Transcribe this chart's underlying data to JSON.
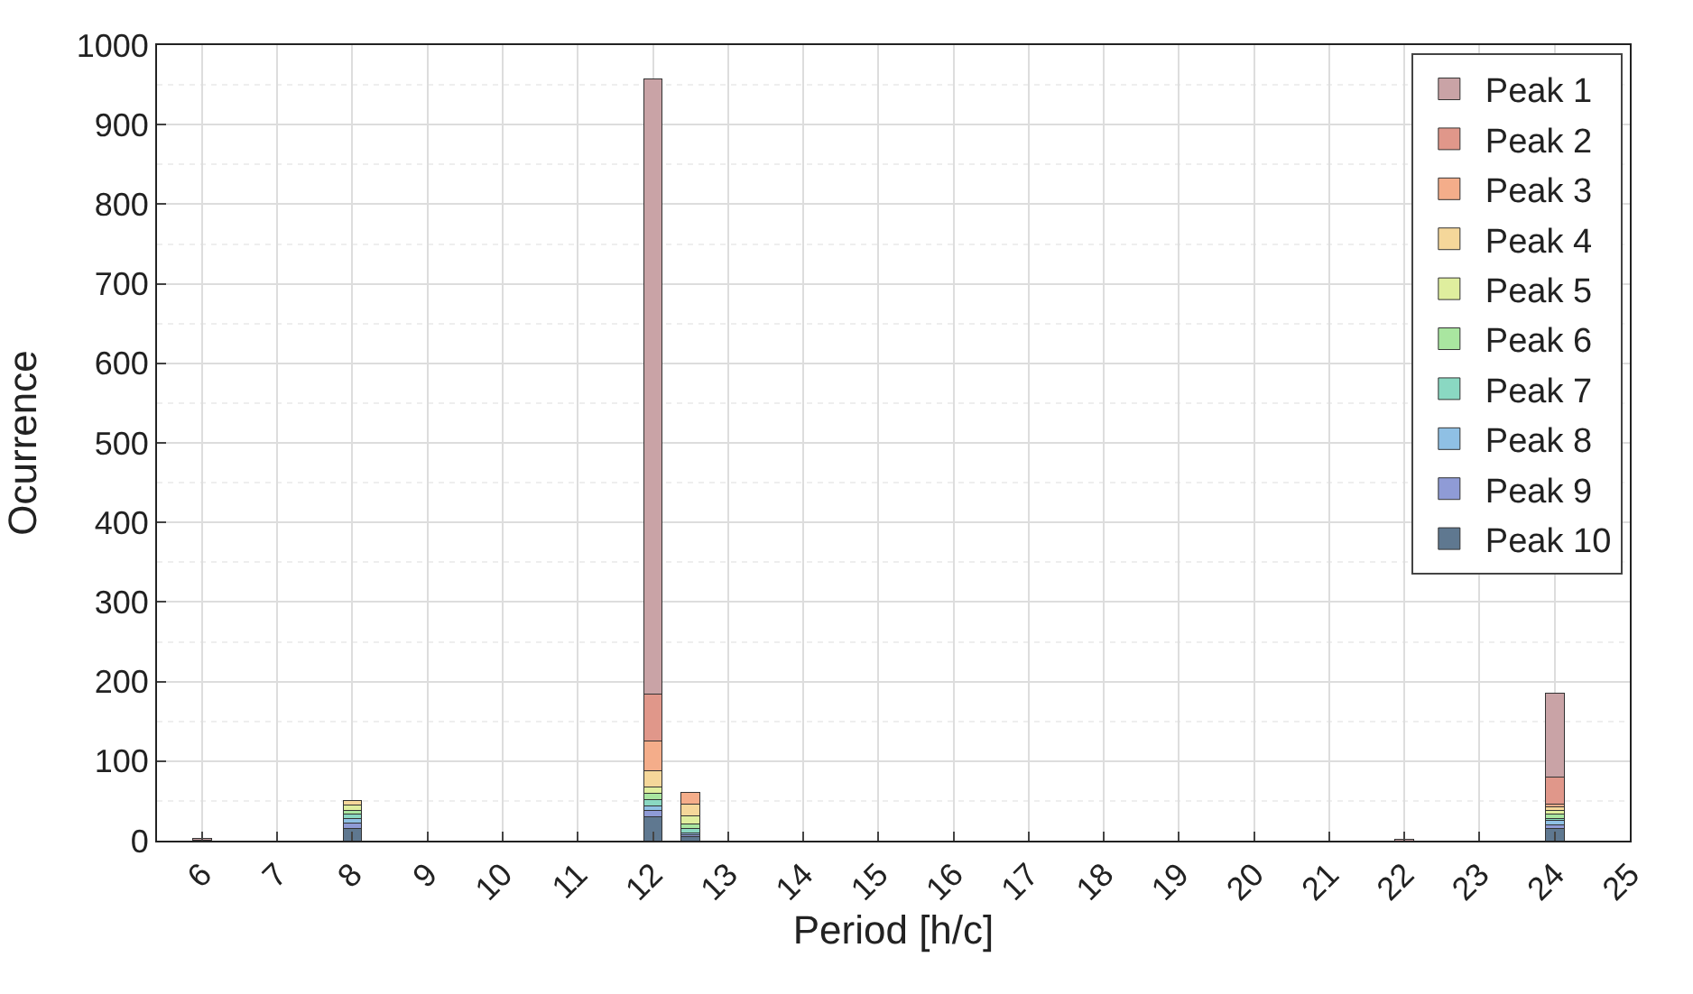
{
  "chart_data": {
    "type": "bar",
    "xlabel": "Period [h/c]",
    "ylabel": "Ocurrence",
    "x": [
      6,
      8,
      12,
      12.5,
      22,
      24
    ],
    "series": [
      {
        "name": "Peak 10",
        "color": "#5f7890",
        "values": [
          1,
          15,
          30,
          5,
          null,
          15
        ]
      },
      {
        "name": "Peak 9",
        "color": "#8f9bd6",
        "values": [
          null,
          7,
          8,
          2,
          null,
          5
        ]
      },
      {
        "name": "Peak 8",
        "color": "#8fc0e4",
        "values": [
          null,
          6,
          6,
          3,
          null,
          5
        ]
      },
      {
        "name": "Peak 7",
        "color": "#8ad8c2",
        "values": [
          null,
          5,
          8,
          5,
          null,
          3
        ]
      },
      {
        "name": "Peak 6",
        "color": "#a9e6a0",
        "values": [
          null,
          5,
          8,
          6,
          null,
          5
        ]
      },
      {
        "name": "Peak 5",
        "color": "#dfee9e",
        "values": [
          null,
          7,
          8,
          10,
          null,
          5
        ]
      },
      {
        "name": "Peak 4",
        "color": "#f5d79a",
        "values": [
          null,
          6,
          20,
          15,
          null,
          4
        ]
      },
      {
        "name": "Peak 3",
        "color": "#f4ad8a",
        "values": [
          null,
          null,
          37,
          15,
          null,
          4
        ]
      },
      {
        "name": "Peak 2",
        "color": "#e0978a",
        "values": [
          null,
          null,
          59,
          null,
          null,
          34
        ]
      },
      {
        "name": "Peak 1",
        "color": "#c9a3a6",
        "values": [
          2,
          null,
          774,
          null,
          2,
          105
        ]
      }
    ],
    "stacked": true,
    "xlim": [
      5.4,
      25
    ],
    "xticks": [
      6,
      7,
      8,
      9,
      10,
      11,
      12,
      13,
      14,
      15,
      16,
      17,
      18,
      19,
      20,
      21,
      22,
      23,
      24,
      25
    ],
    "ylim": [
      0,
      1000
    ],
    "yticks": [
      0,
      100,
      200,
      300,
      400,
      500,
      600,
      700,
      800,
      900,
      1000
    ],
    "grid": true,
    "legend": "top right"
  }
}
